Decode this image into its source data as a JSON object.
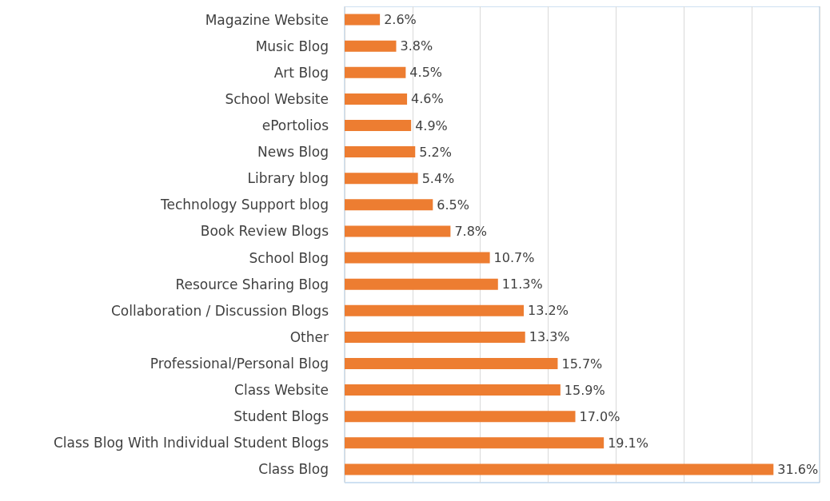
{
  "chart_data": {
    "type": "bar",
    "orientation": "horizontal",
    "categories": [
      "Magazine Website",
      "Music Blog",
      "Art Blog",
      "School Website",
      "ePortolios",
      "News Blog",
      "Library blog",
      "Technology Support blog",
      "Book Review Blogs",
      "School Blog",
      "Resource Sharing Blog",
      "Collaboration / Discussion Blogs",
      "Other",
      "Professional/Personal Blog",
      "Class Website",
      "Student Blogs",
      "Class Blog With Individual Student Blogs",
      "Class Blog"
    ],
    "values": [
      2.6,
      3.8,
      4.5,
      4.6,
      4.9,
      5.2,
      5.4,
      6.5,
      7.8,
      10.7,
      11.3,
      13.2,
      13.3,
      15.7,
      15.9,
      17.0,
      19.1,
      31.6
    ],
    "value_labels": [
      "2.6%",
      "3.8%",
      "4.5%",
      "4.6%",
      "4.9%",
      "5.2%",
      "5.4%",
      "6.5%",
      "7.8%",
      "10.7%",
      "11.3%",
      "13.2%",
      "13.3%",
      "15.7%",
      "15.9%",
      "17.0%",
      "19.1%",
      "31.6%"
    ],
    "color": "#ed7d31",
    "xlim": [
      0,
      35
    ],
    "xticks": [
      {
        "value": 0,
        "label": null
      },
      {
        "value": 5,
        "label": null
      },
      {
        "value": 10,
        "label": null
      },
      {
        "value": 15,
        "label": null
      },
      {
        "value": 20,
        "label": null
      },
      {
        "value": 25,
        "label": null
      },
      {
        "value": 30,
        "label": null
      },
      {
        "value": 35,
        "label": null
      }
    ],
    "grid": "x",
    "tick_labels": "y"
  }
}
